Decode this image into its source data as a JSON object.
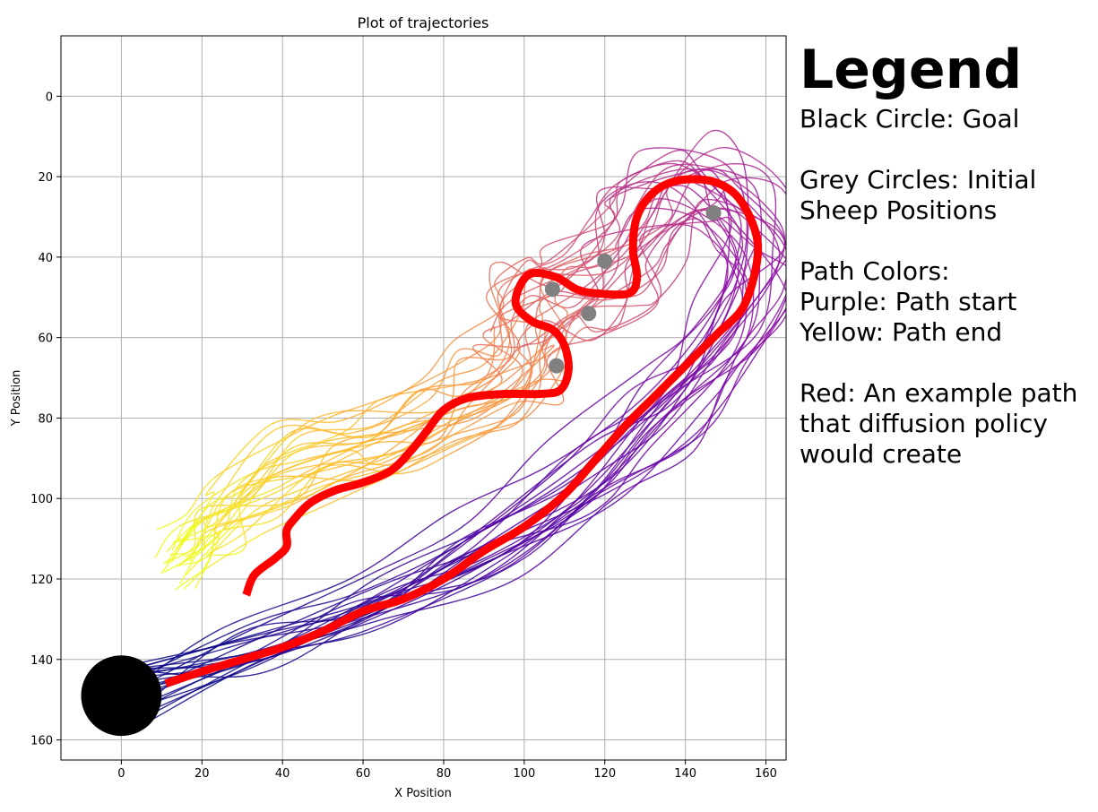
{
  "chart_data": {
    "type": "line",
    "title": "Plot of trajectories",
    "xlabel": "X Position",
    "ylabel": "Y Position",
    "xlim": [
      -15,
      165
    ],
    "ylim": [
      165,
      -15
    ],
    "y_inverted": true,
    "grid": true,
    "x_ticks": [
      0,
      20,
      40,
      60,
      80,
      100,
      120,
      140,
      160
    ],
    "y_ticks": [
      0,
      20,
      40,
      60,
      80,
      100,
      120,
      140,
      160
    ],
    "goal": {
      "x": 0,
      "y": 149,
      "radius": 10,
      "color": "#000000"
    },
    "sheep_initial_positions": [
      {
        "x": 147,
        "y": 29
      },
      {
        "x": 120,
        "y": 41
      },
      {
        "x": 107,
        "y": 48
      },
      {
        "x": 116,
        "y": 54
      },
      {
        "x": 108,
        "y": 67
      }
    ],
    "colormap": "plasma",
    "path_colors": {
      "start": "#0d0887",
      "end": "#f0f921"
    },
    "example_path": {
      "color": "#ff0000",
      "points": [
        [
          11,
          146
        ],
        [
          20,
          143
        ],
        [
          30,
          140
        ],
        [
          40,
          137
        ],
        [
          50,
          133
        ],
        [
          60,
          128
        ],
        [
          70,
          125
        ],
        [
          80,
          120
        ],
        [
          90,
          113
        ],
        [
          100,
          107
        ],
        [
          110,
          99
        ],
        [
          118,
          90
        ],
        [
          125,
          82
        ],
        [
          133,
          74
        ],
        [
          140,
          67
        ],
        [
          148,
          59
        ],
        [
          154,
          53
        ],
        [
          157,
          45
        ],
        [
          158,
          37
        ],
        [
          156,
          30
        ],
        [
          152,
          24
        ],
        [
          146,
          21
        ],
        [
          138,
          21
        ],
        [
          132,
          24
        ],
        [
          128,
          30
        ],
        [
          127,
          38
        ],
        [
          128,
          45
        ],
        [
          126,
          49
        ],
        [
          118,
          49
        ],
        [
          113,
          48
        ],
        [
          108,
          45
        ],
        [
          102,
          44
        ],
        [
          99,
          47
        ],
        [
          98,
          52
        ],
        [
          102,
          56
        ],
        [
          107,
          58
        ],
        [
          110,
          62
        ],
        [
          111,
          68
        ],
        [
          109,
          73
        ],
        [
          104,
          74
        ],
        [
          95,
          74
        ],
        [
          86,
          75
        ],
        [
          80,
          78
        ],
        [
          76,
          83
        ],
        [
          72,
          88
        ],
        [
          67,
          93
        ],
        [
          60,
          96
        ],
        [
          53,
          98
        ],
        [
          47,
          101
        ],
        [
          43,
          105
        ],
        [
          41,
          108
        ],
        [
          41,
          112
        ],
        [
          38,
          115
        ],
        [
          33,
          119
        ],
        [
          31,
          124
        ]
      ]
    }
  },
  "legend": {
    "title": "Legend",
    "lines": [
      "Black Circle: Goal",
      "",
      "Grey Circles: Initial",
      "Sheep Positions",
      "",
      "Path Colors:",
      "Purple: Path start",
      "Yellow: Path end",
      "",
      "Red: An example path",
      "that diffusion policy",
      "would create"
    ]
  }
}
